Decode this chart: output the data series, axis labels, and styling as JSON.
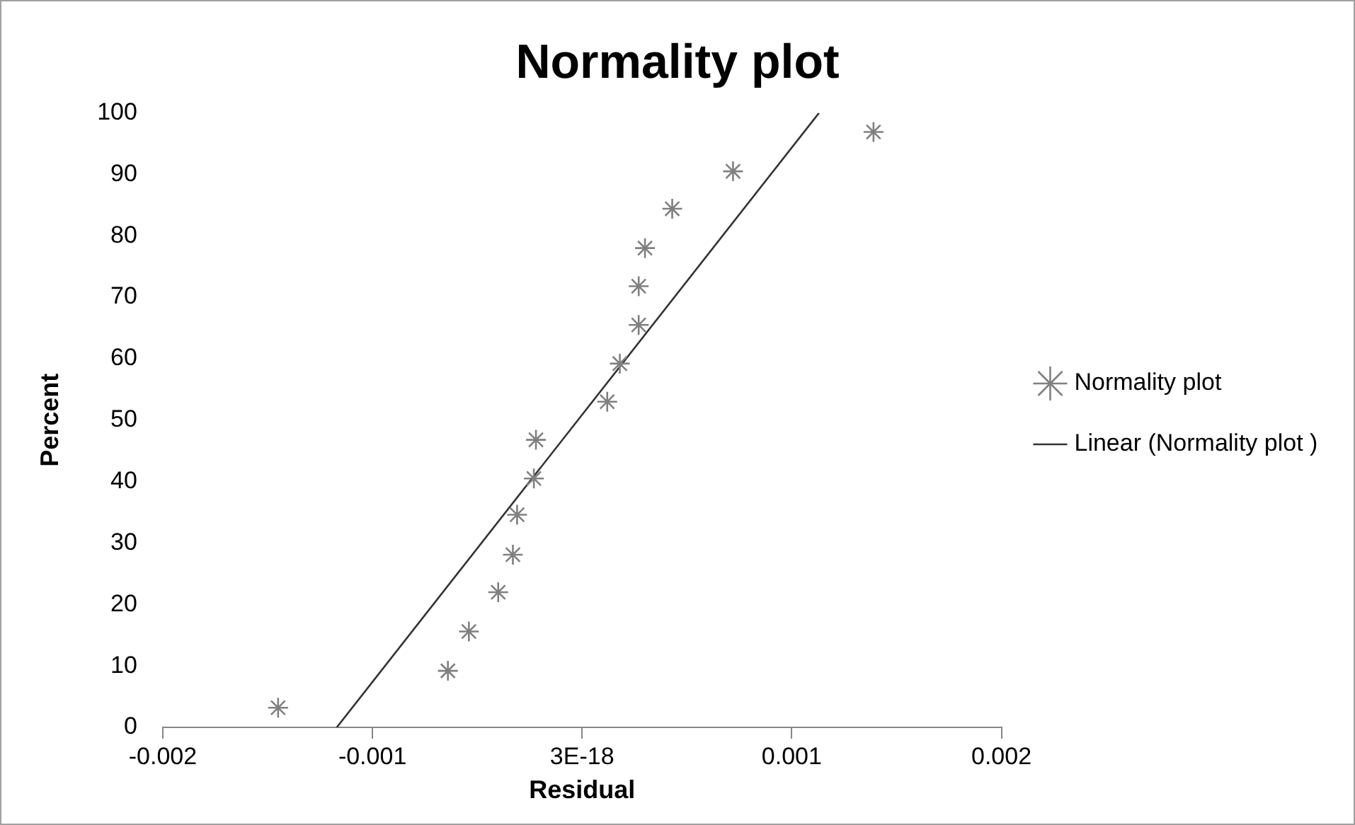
{
  "chart_data": {
    "type": "scatter",
    "title": "Normality plot",
    "xlabel": "Residual",
    "ylabel": "Percent",
    "xlim": [
      -0.002,
      0.002
    ],
    "xticks": [
      -0.002,
      -0.001,
      {
        "value": 0,
        "label": "3E-18"
      },
      0.001,
      0.002
    ],
    "ylim": [
      0,
      100
    ],
    "yticks": [
      0,
      10,
      20,
      30,
      40,
      50,
      60,
      70,
      80,
      90,
      100
    ],
    "grid": false,
    "legend": "right",
    "series": [
      {
        "name": "Normality plot",
        "type": "scatter",
        "marker": "cross",
        "color": "#808080",
        "x": [
          -0.00145,
          -0.00064,
          -0.00054,
          -0.0004,
          -0.00033,
          -0.00031,
          -0.00023,
          -0.00022,
          0.00012,
          0.00018,
          0.00027,
          0.00027,
          0.0003,
          0.00043,
          0.00072,
          0.00139
        ],
        "values": [
          3.2,
          9.2,
          15.6,
          22,
          28.1,
          34.6,
          40.5,
          46.8,
          53,
          59.2,
          65.5,
          71.8,
          78,
          84.4,
          90.5,
          96.9
        ]
      },
      {
        "name": "Linear (Normality plot )",
        "type": "line",
        "marker": "none",
        "color": "#333333",
        "x": [
          -0.00117,
          0.00113
        ],
        "values": [
          0,
          100
        ]
      }
    ]
  }
}
